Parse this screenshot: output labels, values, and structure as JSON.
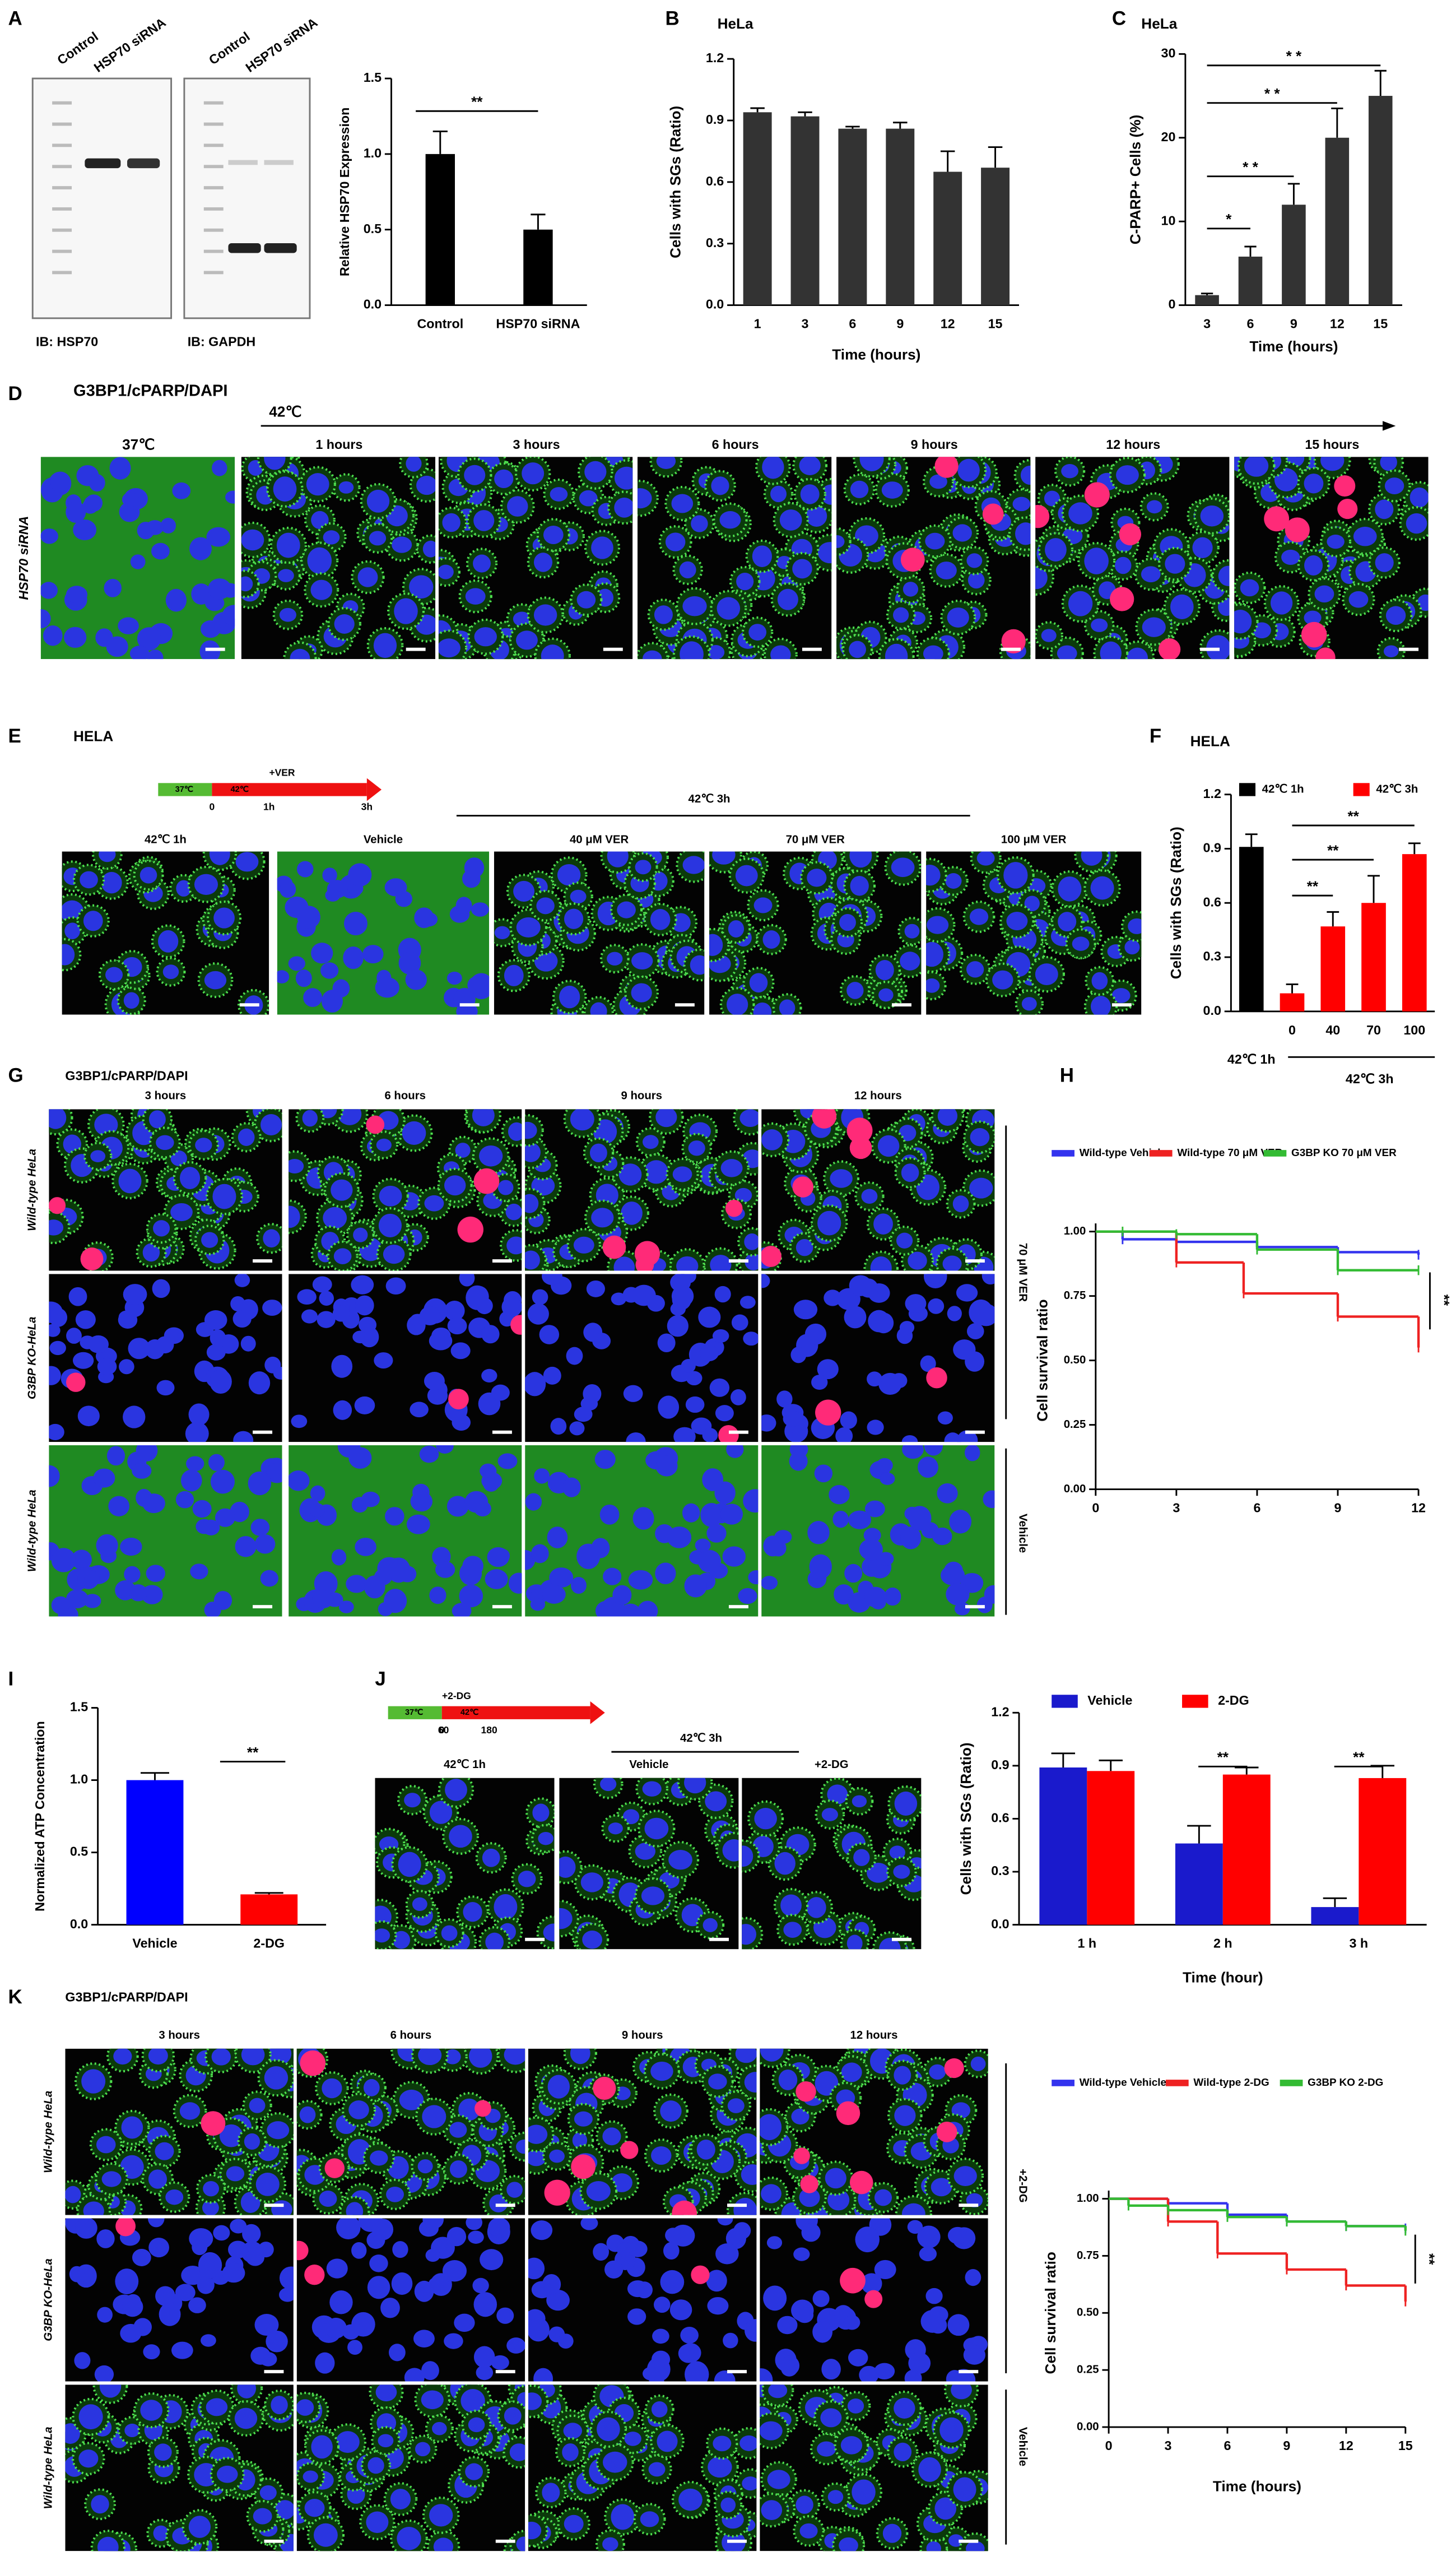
{
  "figure": {
    "panel_letters": [
      "A",
      "B",
      "C",
      "D",
      "E",
      "F",
      "G",
      "H",
      "I",
      "J",
      "K"
    ],
    "A": {
      "lanes": [
        "Control",
        "HSP70 siRNA"
      ],
      "blots": [
        "IB: HSP70",
        "IB: GAPDH"
      ]
    },
    "D": {
      "stain": [
        "G3BP1",
        "/cPARP",
        "/DAPI"
      ],
      "treatment": "42℃",
      "control": "37℃",
      "times": [
        "1 hours",
        "3 hours",
        "6 hours",
        "9 hours",
        "12 hours",
        "15 hours"
      ],
      "row": "HSP70 siRNA"
    },
    "E": {
      "title": "HELA",
      "timeline": [
        "37℃",
        "42℃",
        "+VER",
        "0",
        "1h",
        "3h"
      ],
      "group": "42℃ 3h",
      "images": [
        "42℃ 1h",
        "Vehicle",
        "40 μM VER",
        "70 μM VER",
        "100 μM VER"
      ]
    },
    "G": {
      "stain": [
        "G3BP1",
        "/cPARP",
        "/DAPI"
      ],
      "times": [
        "3 hours",
        "6 hours",
        "9 hours",
        "12 hours"
      ],
      "rows": [
        "Wild-type HeLa",
        "G3BP KO-HeLa",
        "Wild-type HeLa"
      ],
      "side": [
        "70 μM VER",
        "Vehicle"
      ]
    },
    "J": {
      "timeline": [
        "37℃",
        "42℃",
        "+2-DG",
        "0",
        "60",
        "180"
      ],
      "group": "42℃ 3h",
      "images": [
        "42℃ 1h",
        "Vehicle",
        "+2-DG"
      ]
    },
    "K": {
      "stain": [
        "G3BP1",
        "/cPARP",
        "/DAPI"
      ],
      "times": [
        "3 hours",
        "6 hours",
        "9 hours",
        "12 hours"
      ],
      "rows": [
        "Wild-type HeLa",
        "G3BP KO-HeLa",
        "Wild-type HeLa"
      ],
      "side": [
        "+2-DG",
        "Vehicle"
      ]
    }
  },
  "chart_data": [
    {
      "type": "bar",
      "ylabel": "Relative HSP70 Expression",
      "categories": [
        "Control",
        "HSP70 siRNA"
      ],
      "values": [
        1.0,
        0.5
      ],
      "errors": [
        0.15,
        0.1
      ],
      "color": "#000000",
      "ylim": [
        0,
        1.5
      ],
      "yticks": [
        {
          "value": 0,
          "label": "0.0"
        },
        0.5,
        {
          "value": 1,
          "label": "1.0"
        },
        1.5
      ],
      "annotations": [
        "**"
      ]
    },
    {
      "type": "bar",
      "title": "HeLa",
      "ylabel": "Cells with SGs (Ratio)",
      "xlabel": "Time (hours)",
      "categories": [
        "1",
        "3",
        "6",
        "9",
        "12",
        "15"
      ],
      "values": [
        0.94,
        0.92,
        0.86,
        0.86,
        0.65,
        0.67
      ],
      "errors": [
        0.02,
        0.02,
        0.01,
        0.03,
        0.1,
        0.1
      ],
      "color": "#333333",
      "ylim": [
        0,
        1.2
      ],
      "yticks": [
        {
          "value": 0,
          "label": "0.0"
        },
        0.3,
        0.6,
        0.9,
        1.2
      ]
    },
    {
      "type": "bar",
      "title": "HeLa",
      "ylabel": "C-PARP+ Cells (%)",
      "xlabel": "Time (hours)",
      "categories": [
        "3",
        "6",
        "9",
        "12",
        "15"
      ],
      "values": [
        1.2,
        5.8,
        12,
        20,
        25
      ],
      "errors": [
        0.2,
        1.2,
        2.5,
        3.5,
        3
      ],
      "color": "#333333",
      "ylim": [
        0,
        30
      ],
      "yticks": [
        0,
        10,
        20,
        30
      ],
      "annotations": [
        "*",
        "* *",
        "* *",
        "* *"
      ]
    },
    {
      "type": "bar",
      "title": "HELA",
      "ylabel": "Cells with SGs (Ratio)",
      "categories": [
        "42℃ 1h",
        "0",
        "40",
        "70",
        "100"
      ],
      "series": [
        {
          "name": "42℃ 1h",
          "color": "#000000",
          "values": [
            0.91,
            null,
            null,
            null,
            null
          ],
          "errors": [
            0.07,
            null,
            null,
            null,
            null
          ]
        },
        {
          "name": "42℃ 3h",
          "color": "#ff0000",
          "values": [
            null,
            0.1,
            0.47,
            0.6,
            0.87
          ],
          "errors": [
            null,
            0.05,
            0.08,
            0.15,
            0.06
          ]
        }
      ],
      "ylim": [
        0,
        1.2
      ],
      "yticks": [
        {
          "value": 0,
          "label": "0.0"
        },
        0.3,
        0.6,
        0.9,
        1.2
      ],
      "annotations": [
        "**",
        "**",
        "**"
      ]
    },
    {
      "type": "line",
      "ylabel": "Cell survival ratio",
      "series": [
        {
          "name": "Wild-type Vehicle",
          "color": "#3333ee",
          "x": [
            0,
            1,
            3,
            6,
            9,
            12
          ],
          "values": [
            1,
            0.97,
            0.96,
            0.94,
            0.92,
            0.91
          ]
        },
        {
          "name": "Wild-type 70 μM VER",
          "color": "#ee2222",
          "x": [
            0,
            3,
            5.5,
            9,
            12
          ],
          "values": [
            1,
            0.88,
            0.76,
            0.67,
            0.55
          ]
        },
        {
          "name": "G3BP KO 70 μM VER",
          "color": "#33bb33",
          "x": [
            0,
            1,
            3,
            6,
            9,
            12
          ],
          "values": [
            1,
            1,
            0.99,
            0.93,
            0.85,
            0.85
          ]
        }
      ],
      "xlim": [
        0,
        12
      ],
      "xticks": [
        0,
        3,
        6,
        9,
        12
      ],
      "ylim": [
        0,
        1
      ],
      "yticks": [
        {
          "value": 0,
          "label": "0.00"
        },
        0.25,
        {
          "value": 0.5,
          "label": "0.50"
        },
        0.75,
        {
          "value": 1,
          "label": "1.00"
        }
      ],
      "annotations": [
        "**"
      ]
    },
    {
      "type": "bar",
      "ylabel": "Normalized ATP Concentration",
      "categories": [
        "Vehicle",
        "2-DG"
      ],
      "values": [
        1.0,
        0.21
      ],
      "errors": [
        0.05,
        0.01
      ],
      "colors": [
        "#0000ff",
        "#ff0000"
      ],
      "ylim": [
        0,
        1.5
      ],
      "yticks": [
        {
          "value": 0,
          "label": "0.0"
        },
        0.5,
        {
          "value": 1,
          "label": "1.0"
        },
        1.5
      ],
      "annotations": [
        "**"
      ]
    },
    {
      "type": "bar",
      "ylabel": "Cells with SGs (Ratio)",
      "xlabel": "Time (hour)",
      "categories": [
        "1 h",
        "2 h",
        "3 h"
      ],
      "series": [
        {
          "name": "Vehicle",
          "color": "#1a1acc",
          "values": [
            0.89,
            0.46,
            0.1
          ],
          "errors": [
            0.08,
            0.1,
            0.05
          ]
        },
        {
          "name": "2-DG",
          "color": "#ff0000",
          "values": [
            0.87,
            0.85,
            0.83
          ],
          "errors": [
            0.06,
            0.04,
            0.07
          ]
        }
      ],
      "ylim": [
        0,
        1.2
      ],
      "yticks": [
        {
          "value": 0,
          "label": "0.0"
        },
        0.3,
        0.6,
        0.9,
        1.2
      ],
      "annotations": [
        "**",
        "**"
      ]
    },
    {
      "type": "line",
      "ylabel": "Cell survival ratio",
      "xlabel": "Time (hours)",
      "series": [
        {
          "name": "Wild-type Vehicle",
          "color": "#3333ee",
          "x": [
            0,
            3,
            6,
            9,
            12,
            15
          ],
          "values": [
            1,
            0.98,
            0.93,
            0.9,
            0.88,
            0.87
          ]
        },
        {
          "name": "Wild-type 2-DG",
          "color": "#ee2222",
          "x": [
            0,
            3,
            5.5,
            9,
            12,
            15
          ],
          "values": [
            1,
            0.9,
            0.76,
            0.69,
            0.62,
            0.55
          ]
        },
        {
          "name": "G3BP KO 2-DG",
          "color": "#33bb33",
          "x": [
            0,
            1,
            3,
            6,
            9,
            12,
            15
          ],
          "values": [
            1,
            0.97,
            0.95,
            0.92,
            0.9,
            0.88,
            0.86
          ]
        }
      ],
      "xlim": [
        0,
        15
      ],
      "xticks": [
        0,
        3,
        6,
        9,
        12,
        15
      ],
      "ylim": [
        0,
        1
      ],
      "yticks": [
        {
          "value": 0,
          "label": "0.00"
        },
        0.25,
        {
          "value": 0.5,
          "label": "0.50"
        },
        0.75,
        {
          "value": 1,
          "label": "1.00"
        }
      ],
      "annotations": [
        "**"
      ]
    }
  ]
}
